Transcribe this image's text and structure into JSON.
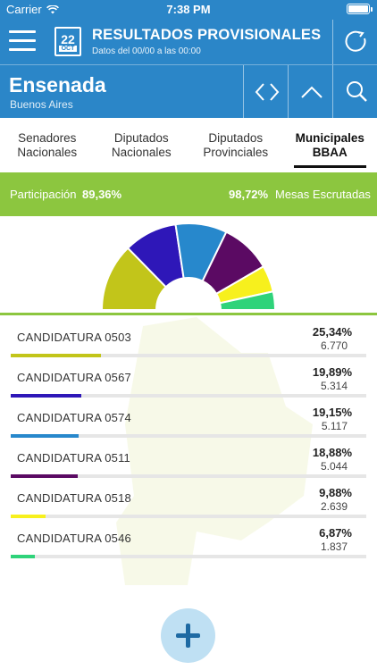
{
  "statusbar": {
    "carrier": "Carrier",
    "time": "7:38 PM"
  },
  "header": {
    "title": "RESULTADOS PROVISIONALES",
    "subtitle": "Datos del 00/00 a las 00:00",
    "calendar_day": "22",
    "calendar_month": "OCT",
    "icons": {
      "menu": "hamburger-icon",
      "calendar": "calendar-icon",
      "refresh": "refresh-icon"
    }
  },
  "location": {
    "title": "Ensenada",
    "subtitle": "Buenos Aires",
    "icons": [
      "swap-icon",
      "chevron-up-icon",
      "search-icon"
    ]
  },
  "tabs": [
    {
      "line1": "Senadores",
      "line2": "Nacionales",
      "active": false
    },
    {
      "line1": "Diputados",
      "line2": "Nacionales",
      "active": false
    },
    {
      "line1": "Diputados",
      "line2": "Provinciales",
      "active": false
    },
    {
      "line1": "Municipales",
      "line2": "BBAA",
      "active": true
    }
  ],
  "participation": {
    "label": "Participación",
    "value": "89,36%",
    "mesas_value": "98,72%",
    "mesas_label": "Mesas Escrutadas"
  },
  "colors": {
    "primary": "#2b86c8",
    "green": "#8cc63f"
  },
  "results": [
    {
      "name": "CANDIDATURA 0503",
      "pct": "25,34%",
      "votes": "6.770",
      "share": 25.34,
      "color": "#c2c51a"
    },
    {
      "name": "CANDIDATURA 0567",
      "pct": "19,89%",
      "votes": "5.314",
      "share": 19.89,
      "color": "#2e17b8"
    },
    {
      "name": "CANDIDATURA 0574",
      "pct": "19,15%",
      "votes": "5.117",
      "share": 19.15,
      "color": "#2788cc"
    },
    {
      "name": "CANDIDATURA 0511",
      "pct": "18,88%",
      "votes": "5.044",
      "share": 18.88,
      "color": "#5b0a63"
    },
    {
      "name": "CANDIDATURA 0518",
      "pct": "9,88%",
      "votes": "2.639",
      "share": 9.88,
      "color": "#f7f01d"
    },
    {
      "name": "CANDIDATURA 0546",
      "pct": "6,87%",
      "votes": "1.837",
      "share": 6.87,
      "color": "#2fd37a"
    }
  ],
  "fab": {
    "icon": "plus-icon"
  }
}
